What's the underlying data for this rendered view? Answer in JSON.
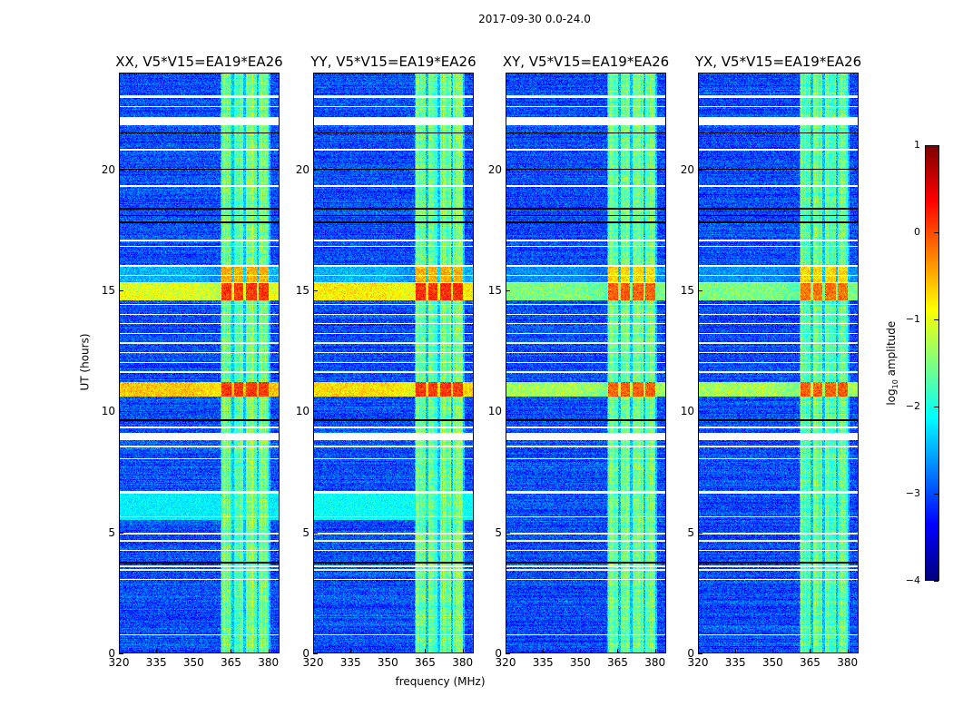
{
  "figure_title": "2017-09-30 0.0-24.0",
  "colors": {
    "flag": "#ffffff",
    "gap": "#000000"
  },
  "chart_data": {
    "type": "heatmap",
    "title": "2017-09-30 0.0-24.0",
    "xlabel": "frequency (MHz)",
    "ylabel": "UT (hours)",
    "xlim": [
      320,
      384.5
    ],
    "ylim": [
      0,
      24
    ],
    "xticks": [
      "320",
      "335",
      "350",
      "365",
      "380"
    ],
    "xtick_values": [
      320,
      335,
      350,
      365,
      380
    ],
    "yticks": [
      "0",
      "5",
      "10",
      "15",
      "20"
    ],
    "ytick_values": [
      0,
      5,
      10,
      15,
      20
    ],
    "colormap": "jet",
    "colorbar": {
      "label_main": "log",
      "label_sub": "10",
      "label_rest": " amplitude",
      "vmin": -4,
      "vmax": 1,
      "ticks": [
        "1",
        "0",
        "−1",
        "−2",
        "−3",
        "−4"
      ],
      "tick_values": [
        1,
        0,
        -1,
        -2,
        -3,
        -4
      ]
    },
    "background_level": -3.0,
    "subbands_mhz": [
      [
        361.3,
        365.5
      ],
      [
        366.5,
        370.2
      ],
      [
        371.2,
        375.5
      ],
      [
        376.5,
        380.6
      ]
    ],
    "subband_level": -1.6,
    "flagged_hours": [
      [
        23.0,
        23.08
      ],
      [
        22.6,
        22.66
      ],
      [
        21.85,
        22.2
      ],
      [
        20.8,
        20.86
      ],
      [
        19.3,
        19.36
      ],
      [
        17.05,
        17.12
      ],
      [
        16.8,
        16.86
      ],
      [
        16.0,
        16.05
      ],
      [
        15.6,
        15.65
      ],
      [
        15.3,
        15.34
      ],
      [
        14.4,
        14.45
      ],
      [
        14.0,
        14.05
      ],
      [
        13.6,
        13.65
      ],
      [
        13.2,
        13.25
      ],
      [
        12.8,
        12.85
      ],
      [
        12.4,
        12.45
      ],
      [
        12.0,
        12.05
      ],
      [
        11.6,
        11.65
      ],
      [
        9.3,
        9.36
      ],
      [
        8.82,
        9.1
      ],
      [
        8.5,
        8.56
      ],
      [
        8.0,
        8.05
      ],
      [
        6.6,
        6.68
      ],
      [
        5.6,
        5.65
      ],
      [
        4.9,
        4.95
      ],
      [
        4.6,
        4.65
      ],
      [
        4.2,
        4.25
      ],
      [
        3.55,
        3.6
      ],
      [
        3.4,
        3.45
      ],
      [
        3.0,
        3.05
      ],
      [
        0.7,
        0.76
      ]
    ],
    "gap_hours": [
      [
        21.5,
        21.55
      ],
      [
        20.0,
        20.05
      ],
      [
        18.35,
        18.45
      ],
      [
        18.1,
        18.15
      ],
      [
        17.8,
        17.85
      ],
      [
        9.6,
        9.66
      ],
      [
        3.7,
        3.75
      ]
    ],
    "panels": [
      {
        "title": "XX, V5*V15=EA19*EA26",
        "rfi": [
          {
            "t": [
              14.6,
              15.3
            ],
            "level": 0.1,
            "broadband": -1.0
          },
          {
            "t": [
              10.6,
              11.2
            ],
            "level": 0.1,
            "broadband": -0.6
          },
          {
            "t": [
              15.3,
              16.0
            ],
            "level": -0.5,
            "broadband": -2.5
          }
        ],
        "extra_band": {
          "t": [
            5.5,
            6.6
          ],
          "level": -2.2
        }
      },
      {
        "title": "YY, V5*V15=EA19*EA26",
        "rfi": [
          {
            "t": [
              14.6,
              15.3
            ],
            "level": 0.15,
            "broadband": -0.8
          },
          {
            "t": [
              10.6,
              11.2
            ],
            "level": 0.1,
            "broadband": -0.7
          },
          {
            "t": [
              15.3,
              16.0
            ],
            "level": -0.5,
            "broadband": -2.5
          }
        ],
        "extra_band": {
          "t": [
            5.5,
            6.6
          ],
          "level": -2.1
        }
      },
      {
        "title": "XY, V5*V15=EA19*EA26",
        "rfi": [
          {
            "t": [
              14.6,
              15.3
            ],
            "level": -0.1,
            "broadband": -1.5
          },
          {
            "t": [
              10.6,
              11.2
            ],
            "level": -0.1,
            "broadband": -1.3
          },
          {
            "t": [
              15.3,
              16.0
            ],
            "level": -0.7,
            "broadband": -2.7
          }
        ],
        "extra_band": null
      },
      {
        "title": "YX, V5*V15=EA19*EA26",
        "rfi": [
          {
            "t": [
              14.6,
              15.3
            ],
            "level": -0.2,
            "broadband": -1.5
          },
          {
            "t": [
              10.6,
              11.2
            ],
            "level": -0.1,
            "broadband": -1.3
          },
          {
            "t": [
              15.3,
              16.0
            ],
            "level": -0.7,
            "broadband": -2.7
          }
        ],
        "extra_band": null
      }
    ]
  }
}
